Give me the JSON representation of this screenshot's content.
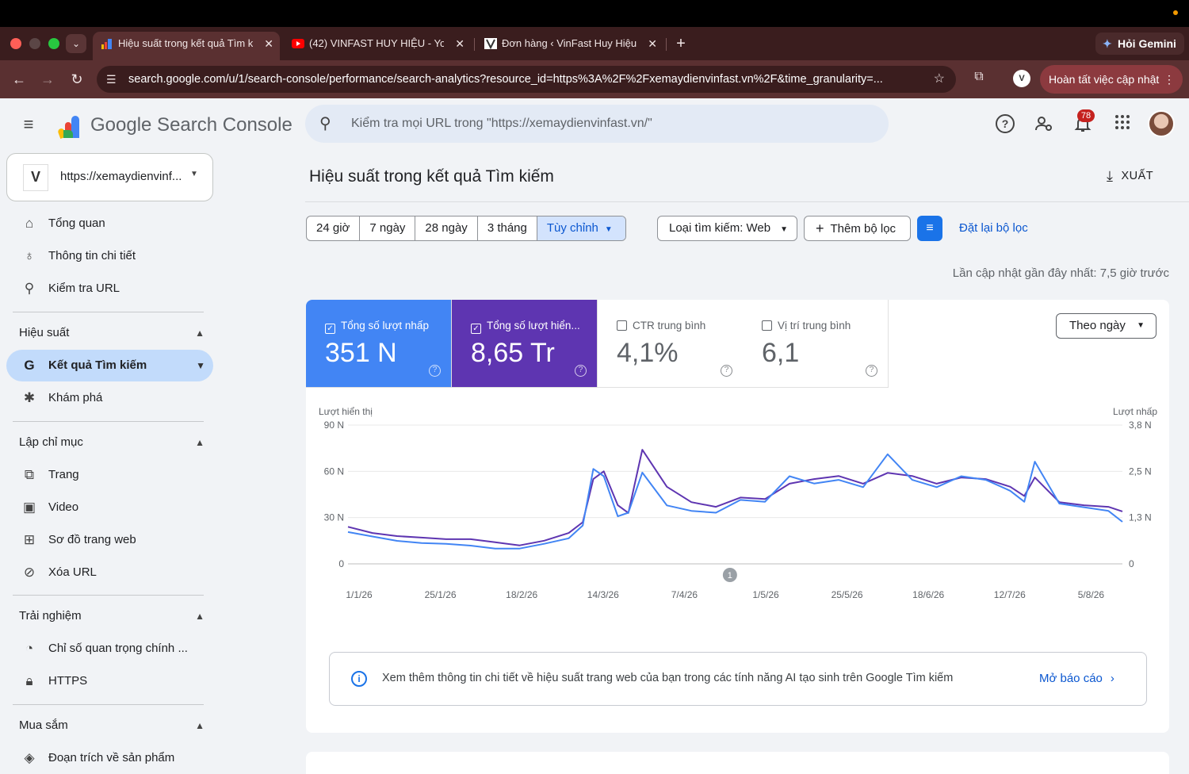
{
  "browser": {
    "tabs": [
      {
        "title": "Hiệu suất trong kết quả Tìm k",
        "close": "✕"
      },
      {
        "title": "(42) VINFAST HUY HIỆU - Yo",
        "close": "✕"
      },
      {
        "title": "Đơn hàng ‹ VinFast Huy Hiệu",
        "close": "✕"
      }
    ],
    "new_tab": "+",
    "gemini_label": "Hỏi Gemini",
    "url": "search.google.com/u/1/search-console/performance/search-analytics?resource_id=https%3A%2F%2Fxemaydienvinfast.vn%2F&time_granularity=...",
    "update_label": "Hoàn tất việc cập nhật",
    "profile_initial": "V"
  },
  "header": {
    "product_name": "Google Search Console",
    "search_placeholder": "Kiểm tra mọi URL trong \"https://xemaydienvinfast.vn/\"",
    "notification_count": "78",
    "help_glyph": "?"
  },
  "sidebar": {
    "property": {
      "logo_text": "V",
      "url": "https://xemaydienvinf..."
    },
    "top_items": [
      {
        "label": "Tổng quan",
        "icon": "home-icon"
      },
      {
        "label": "Thông tin chi tiết",
        "icon": "lightbulb-icon"
      },
      {
        "label": "Kiểm tra URL",
        "icon": "search-icon"
      }
    ],
    "sections": [
      {
        "title": "Hiệu suất",
        "items": [
          {
            "label": "Kết quả Tìm kiếm",
            "icon": "google-g-icon",
            "active": true
          },
          {
            "label": "Khám phá",
            "icon": "asterisk-icon"
          }
        ]
      },
      {
        "title": "Lập chỉ mục",
        "items": [
          {
            "label": "Trang",
            "icon": "pages-icon"
          },
          {
            "label": "Video",
            "icon": "video-icon"
          },
          {
            "label": "Sơ đồ trang web",
            "icon": "sitemap-icon"
          },
          {
            "label": "Xóa URL",
            "icon": "eye-off-icon"
          }
        ]
      },
      {
        "title": "Trải nghiệm",
        "items": [
          {
            "label": "Chỉ số quan trọng chính ...",
            "icon": "speedometer-icon"
          },
          {
            "label": "HTTPS",
            "icon": "lock-icon"
          }
        ]
      },
      {
        "title": "Mua sắm",
        "items": [
          {
            "label": "Đoạn trích về sản phẩm",
            "icon": "diamond-icon"
          }
        ]
      }
    ]
  },
  "main": {
    "title": "Hiệu suất trong kết quả Tìm kiếm",
    "export_label": "XUẤT",
    "date_ranges": [
      "24 giờ",
      "7 ngày",
      "28 ngày",
      "3 tháng",
      "Tùy chỉnh"
    ],
    "selected_range": "Tùy chỉnh",
    "search_type_chip": "Loại tìm kiếm: Web",
    "add_filter_label": "Thêm bộ lọc",
    "reset_filters_label": "Đặt lại bộ lọc",
    "last_updated": "Lần cập nhật gần đây nhất: 7,5 giờ trước",
    "metrics": [
      {
        "label": "Tổng số lượt nhấp",
        "value": "351 N",
        "checked": true,
        "color": "#4285f4"
      },
      {
        "label": "Tổng số lượt hiển...",
        "value": "8,65 Tr",
        "checked": true,
        "color": "#5e35b1"
      },
      {
        "label": "CTR trung bình",
        "value": "4,1%",
        "checked": false
      },
      {
        "label": "Vị trí trung bình",
        "value": "6,1",
        "checked": false
      }
    ],
    "granularity": "Theo ngày",
    "info_banner": {
      "text": "Xem thêm thông tin chi tiết về hiệu suất trang web của bạn trong các tính năng AI tạo sinh trên Google Tìm kiếm",
      "link": "Mở báo cáo"
    }
  },
  "chart_data": {
    "type": "line",
    "left_axis_label": "Lượt hiển thị",
    "right_axis_label": "Lượt nhấp",
    "left_ticks": [
      "0",
      "30 N",
      "60 N",
      "90 N"
    ],
    "right_ticks": [
      "0",
      "1,3 N",
      "2,5 N",
      "3,8 N"
    ],
    "x_ticks": [
      "1/1/26",
      "25/1/26",
      "18/2/26",
      "14/3/26",
      "7/4/26",
      "1/5/26",
      "25/5/26",
      "18/6/26",
      "12/7/26",
      "5/8/26"
    ],
    "annotation_label": "1",
    "annotation_date": "20/4/26",
    "impressions_ylim": [
      0,
      90000
    ],
    "clicks_ylim": [
      0,
      3800
    ],
    "grid": true,
    "series": [
      {
        "name": "Tổng số lượt hiển thị",
        "axis": "left",
        "color": "#5e35b1",
        "x": [
          "1/1/26",
          "8/1/26",
          "15/1/26",
          "22/1/26",
          "29/1/26",
          "5/2/26",
          "12/2/26",
          "19/2/26",
          "26/2/26",
          "5/3/26",
          "9/3/26",
          "12/3/26",
          "15/3/26",
          "19/3/26",
          "22/3/26",
          "26/3/26",
          "2/4/26",
          "9/4/26",
          "16/4/26",
          "23/4/26",
          "30/4/26",
          "7/5/26",
          "14/5/26",
          "21/5/26",
          "28/5/26",
          "4/6/26",
          "11/6/26",
          "18/6/26",
          "25/6/26",
          "2/7/26",
          "9/7/26",
          "13/7/26",
          "16/7/26",
          "23/7/26",
          "30/7/26",
          "6/8/26",
          "10/8/26"
        ],
        "y": [
          24000,
          20000,
          18000,
          17000,
          16000,
          16000,
          14000,
          12000,
          15000,
          20000,
          27000,
          55000,
          60000,
          38000,
          33000,
          74000,
          50000,
          40000,
          37000,
          43000,
          42000,
          52000,
          55000,
          57000,
          52000,
          59000,
          57000,
          52000,
          56000,
          55000,
          50000,
          44000,
          56000,
          40000,
          38000,
          37000,
          34000
        ]
      },
      {
        "name": "Tổng số lượt nhấp",
        "axis": "right",
        "color": "#4285f4",
        "x": [
          "1/1/26",
          "8/1/26",
          "15/1/26",
          "22/1/26",
          "29/1/26",
          "5/2/26",
          "12/2/26",
          "19/2/26",
          "26/2/26",
          "5/3/26",
          "9/3/26",
          "12/3/26",
          "15/3/26",
          "19/3/26",
          "22/3/26",
          "26/3/26",
          "2/4/26",
          "9/4/26",
          "16/4/26",
          "23/4/26",
          "30/4/26",
          "7/5/26",
          "14/5/26",
          "21/5/26",
          "28/5/26",
          "4/6/26",
          "11/6/26",
          "18/6/26",
          "25/6/26",
          "2/7/26",
          "9/7/26",
          "13/7/26",
          "16/7/26",
          "23/7/26",
          "30/7/26",
          "6/8/26",
          "10/8/26"
        ],
        "y": [
          870,
          750,
          630,
          570,
          550,
          500,
          420,
          420,
          550,
          700,
          1050,
          2600,
          2400,
          1300,
          1400,
          2500,
          1600,
          1450,
          1400,
          1750,
          1700,
          2400,
          2200,
          2300,
          2100,
          3000,
          2300,
          2100,
          2400,
          2300,
          2000,
          1700,
          2800,
          1650,
          1550,
          1450,
          1150
        ]
      }
    ]
  }
}
